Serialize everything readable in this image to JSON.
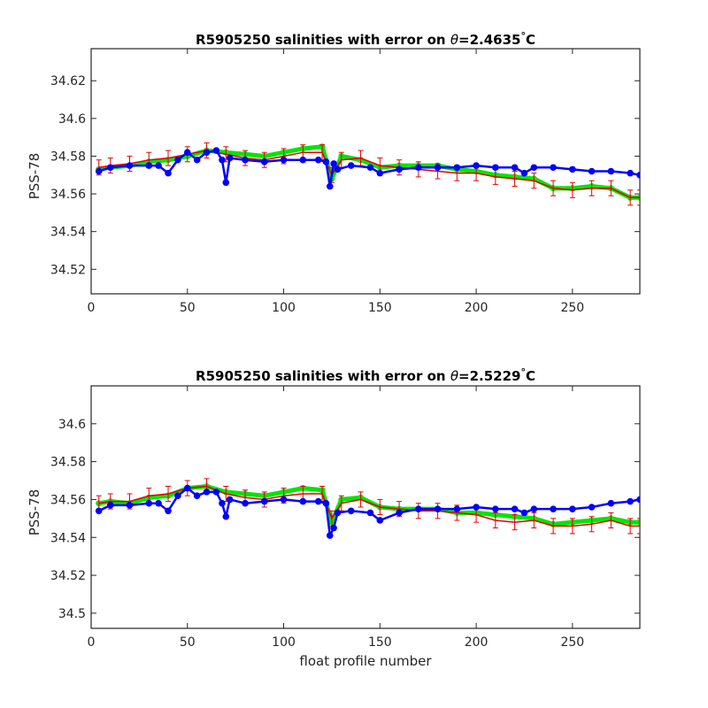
{
  "figure": {
    "xlabel": "float profile number"
  },
  "chart_data": [
    {
      "type": "line",
      "title": {
        "prefix": "R5905250 salinities with error on ",
        "theta": "θ",
        "value": "=2.4635",
        "deg": "°",
        "unit": "C"
      },
      "ylabel": "PSS-78",
      "xlim": [
        0,
        285
      ],
      "ylim": [
        34.507,
        34.637
      ],
      "xticks": [
        0,
        50,
        100,
        150,
        200,
        250
      ],
      "yticks": [
        34.52,
        34.54,
        34.56,
        34.58,
        34.6,
        34.62
      ],
      "ytick_labels": [
        "34.52",
        "34.54",
        "34.56",
        "34.58",
        "34.6",
        "34.62"
      ],
      "series": [
        {
          "role": "calibrated",
          "color": "#00e600",
          "x": [
            4,
            10,
            20,
            30,
            40,
            50,
            60,
            70,
            80,
            90,
            100,
            110,
            120,
            125,
            130,
            140,
            150,
            160,
            170,
            180,
            190,
            200,
            210,
            220,
            230,
            240,
            250,
            260,
            270,
            280,
            285
          ],
          "y": [
            34.573,
            34.574,
            34.575,
            34.577,
            34.578,
            34.58,
            34.583,
            34.582,
            34.581,
            34.58,
            34.582,
            34.584,
            34.585,
            34.568,
            34.58,
            34.578,
            34.574,
            34.575,
            34.575,
            34.575,
            34.573,
            34.572,
            34.57,
            34.569,
            34.568,
            34.563,
            34.563,
            34.564,
            34.563,
            34.558,
            34.558
          ]
        },
        {
          "role": "calibrated-with-error",
          "color": "#e60000",
          "x": [
            4,
            10,
            20,
            30,
            40,
            50,
            60,
            70,
            80,
            90,
            100,
            110,
            120,
            125,
            130,
            140,
            150,
            160,
            170,
            180,
            190,
            200,
            210,
            220,
            230,
            240,
            250,
            260,
            270,
            280,
            285
          ],
          "y": [
            34.574,
            34.575,
            34.576,
            34.578,
            34.579,
            34.581,
            34.583,
            34.581,
            34.579,
            34.578,
            34.58,
            34.582,
            34.582,
            34.57,
            34.578,
            34.579,
            34.575,
            34.574,
            34.573,
            34.572,
            34.571,
            34.571,
            34.569,
            34.568,
            34.567,
            34.563,
            34.562,
            34.563,
            34.563,
            34.558,
            34.558
          ],
          "err": 0.004
        },
        {
          "role": "uncalibrated",
          "color": "#0000ff",
          "x": [
            4,
            10,
            20,
            30,
            35,
            40,
            45,
            50,
            55,
            60,
            65,
            68,
            70,
            72,
            80,
            90,
            100,
            110,
            118,
            122,
            124,
            126,
            128,
            135,
            145,
            150,
            160,
            170,
            180,
            190,
            200,
            210,
            220,
            225,
            230,
            240,
            250,
            260,
            270,
            280,
            285
          ],
          "y": [
            34.572,
            34.574,
            34.575,
            34.575,
            34.575,
            34.571,
            34.578,
            34.582,
            34.578,
            34.582,
            34.583,
            34.578,
            34.566,
            34.579,
            34.578,
            34.577,
            34.578,
            34.578,
            34.578,
            34.577,
            34.564,
            34.576,
            34.573,
            34.575,
            34.574,
            34.571,
            34.573,
            34.574,
            34.574,
            34.574,
            34.575,
            34.574,
            34.574,
            34.571,
            34.574,
            34.574,
            34.573,
            34.572,
            34.572,
            34.571,
            34.57
          ]
        }
      ]
    },
    {
      "type": "line",
      "title": {
        "prefix": "R5905250 salinities with error on ",
        "theta": "θ",
        "value": "=2.5229",
        "deg": "°",
        "unit": "C"
      },
      "ylabel": "PSS-78",
      "xlim": [
        0,
        285
      ],
      "ylim": [
        34.492,
        34.62
      ],
      "xticks": [
        0,
        50,
        100,
        150,
        200,
        250
      ],
      "yticks": [
        34.5,
        34.52,
        34.54,
        34.56,
        34.58,
        34.6
      ],
      "ytick_labels": [
        "34.5",
        "34.52",
        "34.54",
        "34.56",
        "34.58",
        "34.6"
      ],
      "series": [
        {
          "role": "calibrated",
          "color": "#00e600",
          "x": [
            4,
            10,
            20,
            30,
            40,
            50,
            60,
            70,
            80,
            90,
            100,
            110,
            120,
            125,
            130,
            140,
            150,
            160,
            170,
            180,
            190,
            200,
            210,
            220,
            230,
            240,
            250,
            260,
            270,
            280,
            285
          ],
          "y": [
            34.558,
            34.559,
            34.558,
            34.561,
            34.562,
            34.566,
            34.567,
            34.564,
            34.563,
            34.562,
            34.564,
            34.566,
            34.565,
            34.548,
            34.56,
            34.561,
            34.556,
            34.555,
            34.555,
            34.555,
            34.553,
            34.553,
            34.552,
            34.551,
            34.55,
            34.547,
            34.548,
            34.549,
            34.55,
            34.548,
            34.548
          ]
        },
        {
          "role": "calibrated-with-error",
          "color": "#e60000",
          "x": [
            4,
            10,
            20,
            30,
            40,
            50,
            60,
            70,
            80,
            90,
            100,
            110,
            120,
            125,
            130,
            140,
            150,
            160,
            170,
            180,
            190,
            200,
            210,
            220,
            230,
            240,
            250,
            260,
            270,
            280,
            285
          ],
          "y": [
            34.558,
            34.559,
            34.559,
            34.562,
            34.563,
            34.566,
            34.567,
            34.563,
            34.561,
            34.56,
            34.562,
            34.563,
            34.563,
            34.55,
            34.558,
            34.56,
            34.556,
            34.555,
            34.554,
            34.554,
            34.553,
            34.552,
            34.549,
            34.548,
            34.549,
            34.546,
            34.546,
            34.547,
            34.549,
            34.546,
            34.546
          ],
          "err": 0.004
        },
        {
          "role": "uncalibrated",
          "color": "#0000ff",
          "x": [
            4,
            10,
            20,
            30,
            35,
            40,
            45,
            50,
            55,
            60,
            65,
            68,
            70,
            72,
            80,
            90,
            100,
            110,
            118,
            122,
            124,
            126,
            128,
            135,
            145,
            150,
            160,
            170,
            180,
            190,
            200,
            210,
            220,
            225,
            230,
            240,
            250,
            260,
            270,
            280,
            285
          ],
          "y": [
            34.554,
            34.557,
            34.557,
            34.558,
            34.558,
            34.554,
            34.562,
            34.566,
            34.562,
            34.564,
            34.564,
            34.558,
            34.551,
            34.56,
            34.558,
            34.559,
            34.56,
            34.559,
            34.559,
            34.558,
            34.541,
            34.545,
            34.553,
            34.554,
            34.553,
            34.549,
            34.553,
            34.555,
            34.555,
            34.555,
            34.556,
            34.555,
            34.555,
            34.553,
            34.555,
            34.555,
            34.555,
            34.556,
            34.558,
            34.559,
            34.56
          ]
        }
      ]
    }
  ]
}
